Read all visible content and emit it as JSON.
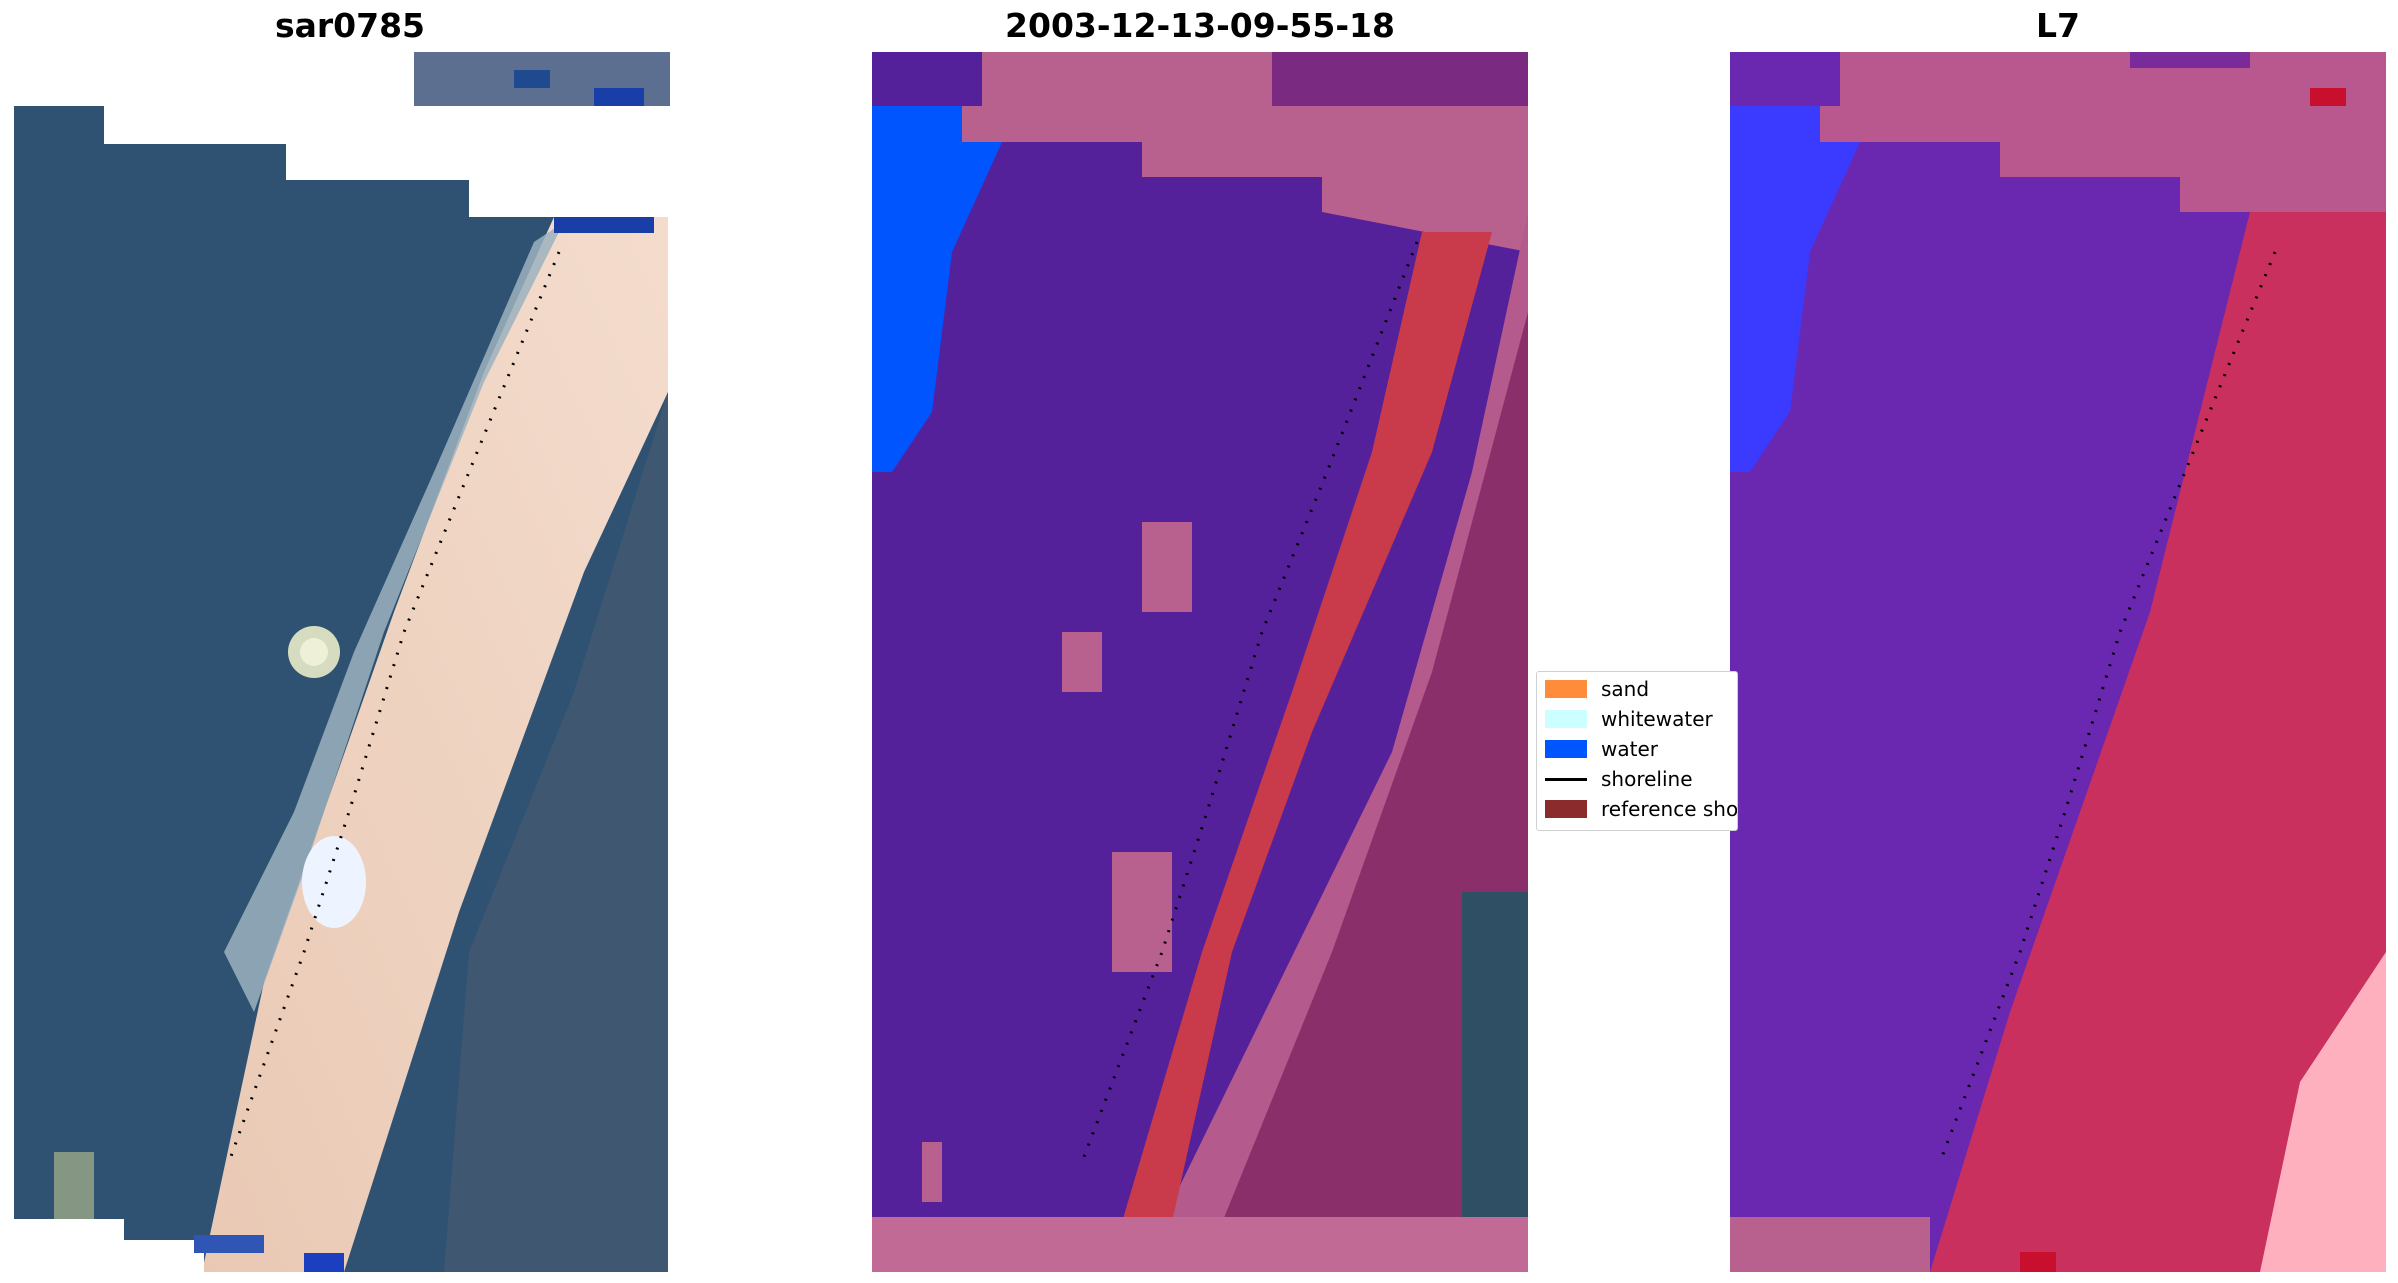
{
  "panels": {
    "left_title": "sar0785",
    "middle_title": "2003-12-13-09-55-18",
    "right_title": "L7"
  },
  "legend": {
    "items": [
      {
        "label": "sand",
        "color": "#ff8c3a",
        "kind": "patch"
      },
      {
        "label": "whitewater",
        "color": "#ccffff",
        "kind": "patch"
      },
      {
        "label": "water",
        "color": "#0055ff",
        "kind": "patch"
      },
      {
        "label": "shoreline",
        "color": "#000000",
        "kind": "line"
      },
      {
        "label": "reference shoreline",
        "color": "#8b2b2b",
        "kind": "patch"
      }
    ]
  },
  "colors": {
    "rgb_water": "#2e5270",
    "rgb_sand": "#f0d2c0",
    "class_water": "#55219a",
    "class_sand_label": "#c93a4a",
    "class_land": "#b8608e",
    "class_blue": "#0055ff",
    "ndwi_water": "#6a27b0",
    "ndwi_land": "#c9305d",
    "ndwi_blue": "#3b3bff"
  }
}
